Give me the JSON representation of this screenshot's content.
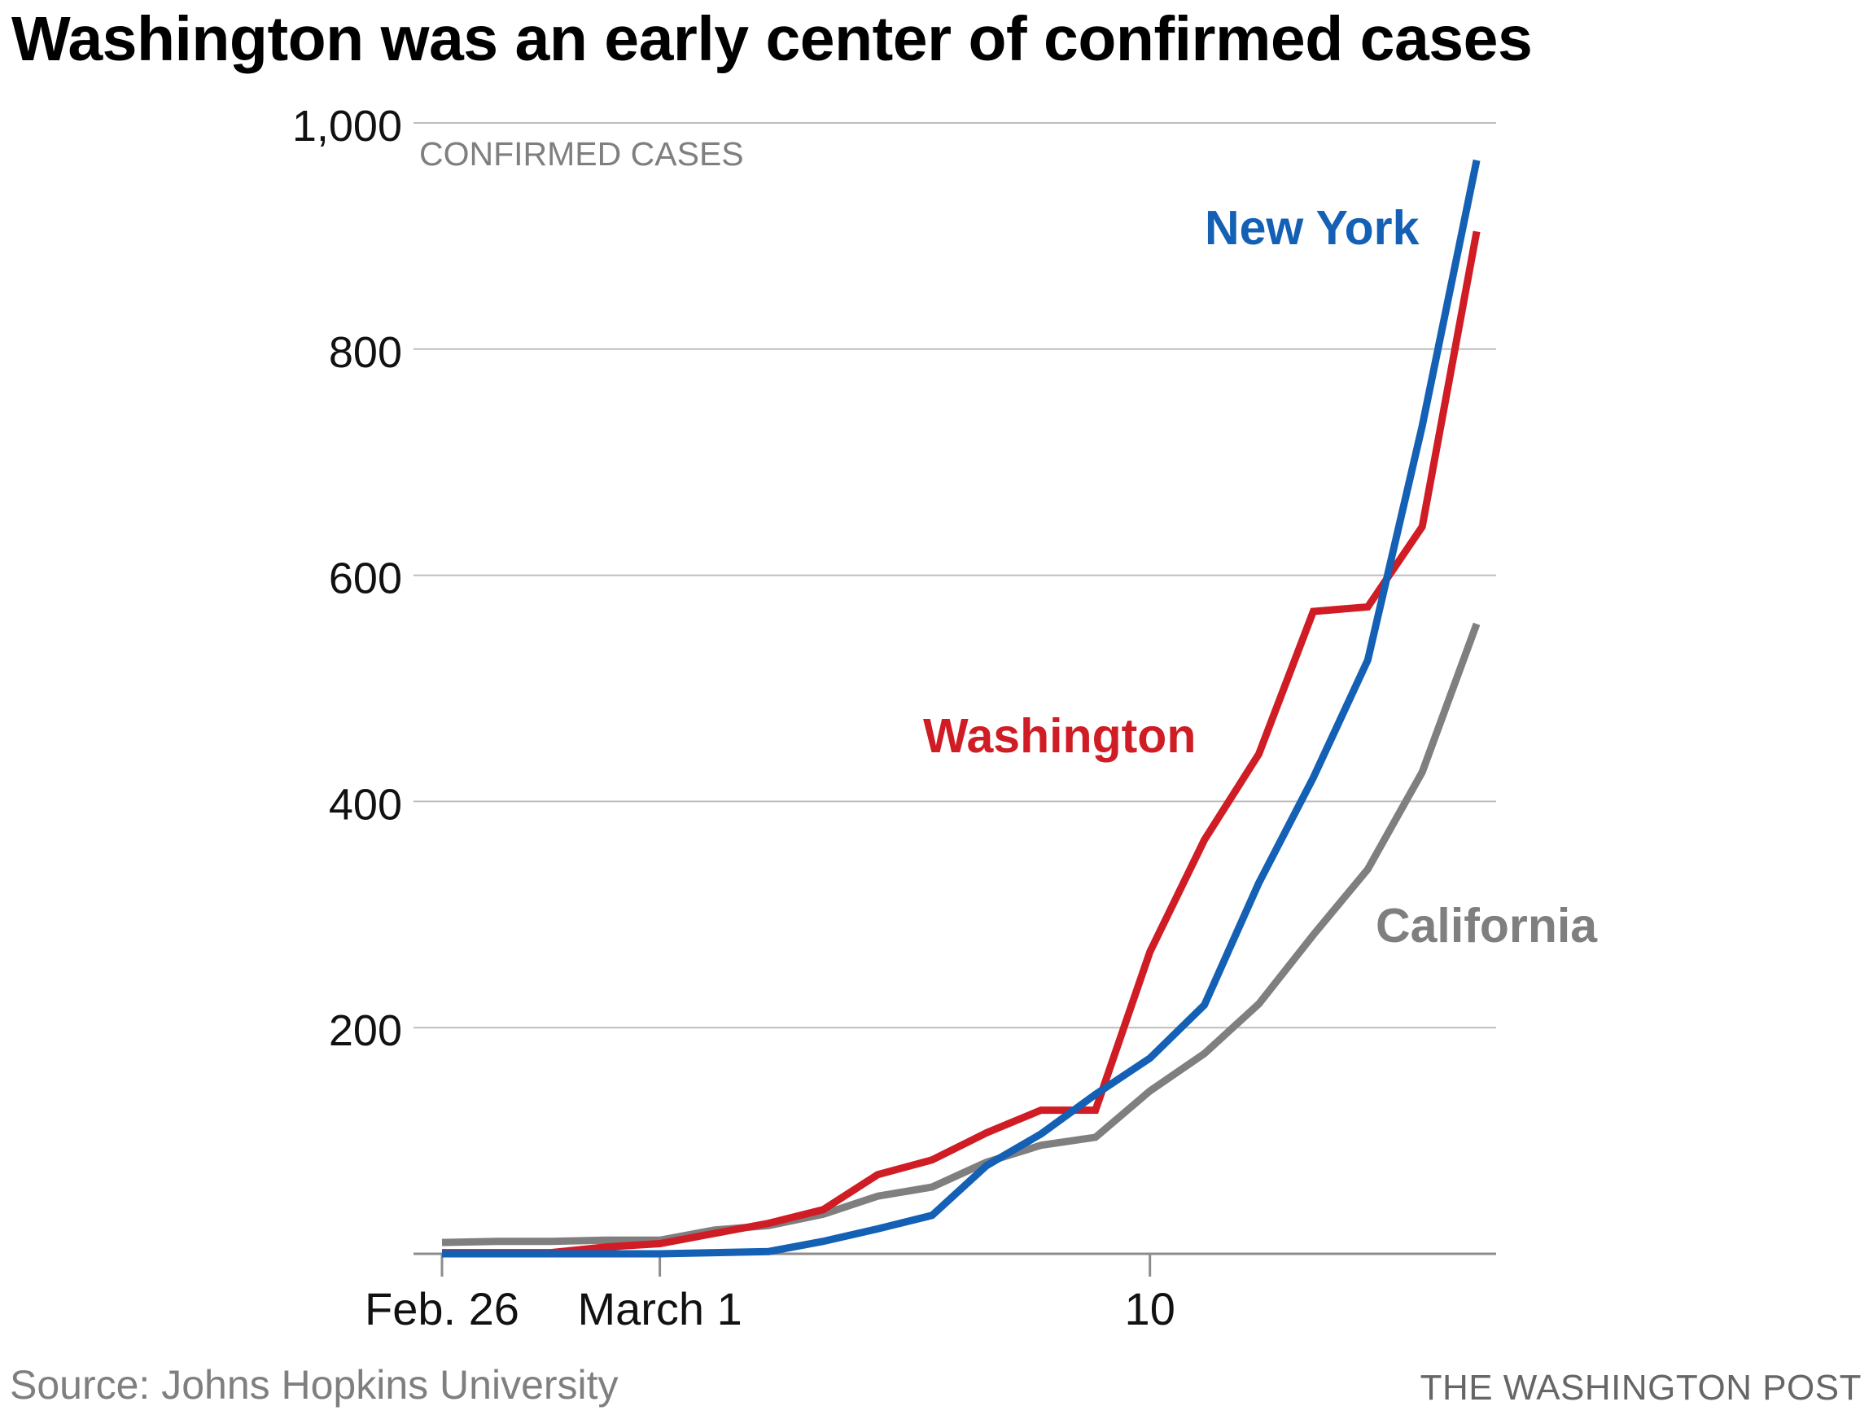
{
  "chart_data": {
    "type": "line",
    "title": "Washington was an early center of confirmed cases",
    "ylabel": "CONFIRMED CASES",
    "xlabel": "",
    "ylim": [
      0,
      1000
    ],
    "yticks": [
      200,
      400,
      600,
      800,
      1000
    ],
    "ytick_labels": [
      "200",
      "400",
      "600",
      "800",
      "1,000"
    ],
    "xticks": [
      {
        "date": "2020-02-26",
        "label": "Feb. 26"
      },
      {
        "date": "2020-03-01",
        "label": "March 1"
      },
      {
        "date": "2020-03-10",
        "label": "10"
      }
    ],
    "x": [
      "2020-02-26",
      "2020-02-27",
      "2020-02-28",
      "2020-02-29",
      "2020-03-01",
      "2020-03-02",
      "2020-03-03",
      "2020-03-04",
      "2020-03-05",
      "2020-03-06",
      "2020-03-07",
      "2020-03-08",
      "2020-03-09",
      "2020-03-10",
      "2020-03-11",
      "2020-03-12",
      "2020-03-13",
      "2020-03-14",
      "2020-03-15",
      "2020-03-16",
      "2020-03-17"
    ],
    "series": [
      {
        "name": "Washington",
        "color": "#d01c24",
        "values": [
          1,
          1,
          1,
          6,
          9,
          18,
          27,
          39,
          70,
          83,
          107,
          127,
          127,
          267,
          366,
          442,
          568,
          572,
          643,
          904,
          null
        ]
      },
      {
        "name": "New York",
        "color": "#1360b5",
        "values": [
          0,
          0,
          0,
          0,
          0,
          1,
          2,
          11,
          22,
          34,
          78,
          106,
          141,
          173,
          220,
          328,
          421,
          525,
          732,
          967,
          null
        ]
      },
      {
        "name": "California",
        "color": "#7f7f7f",
        "values": [
          10,
          11,
          11,
          12,
          12,
          21,
          25,
          35,
          51,
          59,
          81,
          96,
          103,
          144,
          177,
          221,
          282,
          340,
          426,
          557,
          null
        ]
      }
    ],
    "grid": true,
    "legend": "direct labels on lines"
  },
  "footer": {
    "source": "Source: Johns Hopkins University",
    "credit": "THE WASHINGTON POST"
  }
}
